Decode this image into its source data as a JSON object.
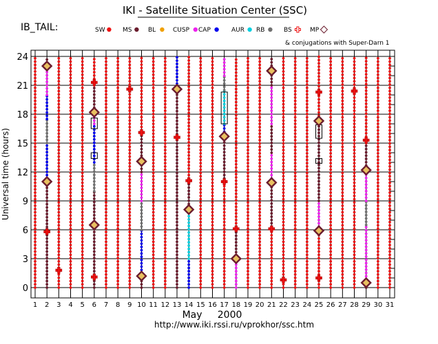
{
  "chart_data": {
    "type": "scatter",
    "title": "IKI - Satellite Situation Center (SSC)",
    "subtitle": "IB_TAIL:",
    "ylabel": "Universal time (hours)",
    "xlabel": "May     2000",
    "url": "http://www.iki.rssi.ru/vprokhor/ssc.htm",
    "conjugation_note": "& conjugations with Super-Darn 1",
    "xlim": [
      1,
      31
    ],
    "ylim": [
      0,
      24
    ],
    "y_ticks": [
      0,
      3,
      6,
      9,
      12,
      15,
      18,
      21,
      24
    ],
    "x_ticks": [
      "1",
      "2",
      "3",
      "4",
      "5",
      "6",
      "7",
      "8",
      "9",
      "10",
      "11",
      "12",
      "13",
      "14",
      "15",
      "16",
      "17",
      "18",
      "19",
      "20",
      "21",
      "22",
      "23",
      "24",
      "25",
      "26",
      "27",
      "28",
      "29",
      "30",
      "31"
    ],
    "grid": true,
    "legend": [
      {
        "label": "SW",
        "key": "SW",
        "color": "#ee1111"
      },
      {
        "label": "MS",
        "key": "MS",
        "color": "#6b1d2e"
      },
      {
        "label": "BL",
        "key": "BL",
        "color": "#f0a000"
      },
      {
        "label": "CUSP",
        "key": "CUSP",
        "color": "#ee22ee"
      },
      {
        "label": "CAP",
        "key": "CAP",
        "color": "#0000ee"
      },
      {
        "label": "AUR",
        "key": "AUR",
        "color": "#00d0e0"
      },
      {
        "label": "RB",
        "key": "RB",
        "color": "#707070"
      },
      {
        "label": "BS",
        "key": "BS",
        "color": "#ee1111"
      },
      {
        "label": "MP",
        "key": "MP",
        "color": "#6b1d2e"
      }
    ],
    "region_colors": {
      "SW": "#ee1111",
      "MS": "#6b1d2e",
      "BL": "#f0a000",
      "CUSP": "#ee22ee",
      "CAP": "#0000ee",
      "AUR": "#00d0e0",
      "RB": "#707070"
    },
    "columns": [
      {
        "day": 1,
        "segments": [
          {
            "from": 0,
            "to": 24,
            "region": "SW"
          }
        ]
      },
      {
        "day": 2,
        "segments": [
          {
            "from": 0,
            "to": 5.6,
            "region": "MS"
          },
          {
            "from": 5.6,
            "to": 11,
            "region": "MS"
          },
          {
            "from": 11,
            "to": 15,
            "region": "CAP"
          },
          {
            "from": 15,
            "to": 17.5,
            "region": "RB"
          },
          {
            "from": 17.5,
            "to": 20,
            "region": "CAP"
          },
          {
            "from": 20,
            "to": 23,
            "region": "CUSP"
          },
          {
            "from": 23,
            "to": 24,
            "region": "MS"
          }
        ]
      },
      {
        "day": 3,
        "segments": [
          {
            "from": 0,
            "to": 24,
            "region": "SW"
          }
        ]
      },
      {
        "day": 4,
        "segments": [
          {
            "from": 0,
            "to": 24,
            "region": "SW"
          }
        ]
      },
      {
        "day": 5,
        "segments": [
          {
            "from": 0,
            "to": 24,
            "region": "SW"
          }
        ]
      },
      {
        "day": 6,
        "segments": [
          {
            "from": 0,
            "to": 6.5,
            "region": "MS"
          },
          {
            "from": 6.5,
            "to": 10,
            "region": "MS"
          },
          {
            "from": 10,
            "to": 13,
            "region": "RB"
          },
          {
            "from": 13,
            "to": 17,
            "region": "CAP"
          },
          {
            "from": 17,
            "to": 18,
            "region": "CUSP"
          },
          {
            "from": 18,
            "to": 21,
            "region": "MS"
          },
          {
            "from": 21,
            "to": 24,
            "region": "SW"
          }
        ]
      },
      {
        "day": 7,
        "segments": [
          {
            "from": 0,
            "to": 24,
            "region": "SW"
          }
        ]
      },
      {
        "day": 8,
        "segments": [
          {
            "from": 0,
            "to": 24,
            "region": "SW"
          }
        ]
      },
      {
        "day": 9,
        "segments": [
          {
            "from": 0,
            "to": 24,
            "region": "SW"
          }
        ]
      },
      {
        "day": 10,
        "segments": [
          {
            "from": 0,
            "to": 1.5,
            "region": "MS"
          },
          {
            "from": 1.5,
            "to": 6,
            "region": "CAP"
          },
          {
            "from": 6,
            "to": 9,
            "region": "RB"
          },
          {
            "from": 9,
            "to": 12,
            "region": "CUSP"
          },
          {
            "from": 12,
            "to": 16,
            "region": "MS"
          },
          {
            "from": 16,
            "to": 24,
            "region": "SW"
          }
        ]
      },
      {
        "day": 11,
        "segments": [
          {
            "from": 0,
            "to": 24,
            "region": "SW"
          }
        ]
      },
      {
        "day": 12,
        "segments": [
          {
            "from": 0,
            "to": 24,
            "region": "SW"
          }
        ]
      },
      {
        "day": 13,
        "segments": [
          {
            "from": 0,
            "to": 15.6,
            "region": "MS"
          },
          {
            "from": 15.6,
            "to": 20.5,
            "region": "MS"
          },
          {
            "from": 20.5,
            "to": 24,
            "region": "CAP"
          }
        ]
      },
      {
        "day": 14,
        "segments": [
          {
            "from": 0,
            "to": 3,
            "region": "CAP"
          },
          {
            "from": 3,
            "to": 8,
            "region": "AUR"
          },
          {
            "from": 8,
            "to": 11,
            "region": "MS"
          },
          {
            "from": 11,
            "to": 24,
            "region": "SW"
          }
        ]
      },
      {
        "day": 15,
        "segments": [
          {
            "from": 0,
            "to": 24,
            "region": "SW"
          }
        ]
      },
      {
        "day": 16,
        "segments": [
          {
            "from": 0,
            "to": 24,
            "region": "SW"
          }
        ]
      },
      {
        "day": 17,
        "segments": [
          {
            "from": 0,
            "to": 11,
            "region": "SW"
          },
          {
            "from": 11,
            "to": 15.5,
            "region": "MS"
          },
          {
            "from": 15.5,
            "to": 17,
            "region": "CAP"
          },
          {
            "from": 17,
            "to": 20.5,
            "region": "AUR"
          },
          {
            "from": 20.5,
            "to": 22,
            "region": "RB"
          },
          {
            "from": 22,
            "to": 24,
            "region": "CUSP"
          }
        ]
      },
      {
        "day": 18,
        "segments": [
          {
            "from": 0,
            "to": 3,
            "region": "CUSP"
          },
          {
            "from": 3,
            "to": 6,
            "region": "MS"
          },
          {
            "from": 6,
            "to": 24,
            "region": "SW"
          }
        ]
      },
      {
        "day": 19,
        "segments": [
          {
            "from": 0,
            "to": 24,
            "region": "SW"
          }
        ]
      },
      {
        "day": 20,
        "segments": [
          {
            "from": 0,
            "to": 24,
            "region": "SW"
          }
        ]
      },
      {
        "day": 21,
        "segments": [
          {
            "from": 0,
            "to": 6,
            "region": "SW"
          },
          {
            "from": 6,
            "to": 11,
            "region": "MS"
          },
          {
            "from": 11,
            "to": 14,
            "region": "CUSP"
          },
          {
            "from": 14,
            "to": 17,
            "region": "MS"
          },
          {
            "from": 17,
            "to": 21,
            "region": "CUSP"
          },
          {
            "from": 21,
            "to": 24,
            "region": "MS"
          }
        ]
      },
      {
        "day": 22,
        "segments": [
          {
            "from": 0,
            "to": 24,
            "region": "SW"
          }
        ]
      },
      {
        "day": 23,
        "segments": [
          {
            "from": 0,
            "to": 24,
            "region": "SW"
          }
        ]
      },
      {
        "day": 24,
        "segments": [
          {
            "from": 0,
            "to": 24,
            "region": "SW"
          }
        ]
      },
      {
        "day": 25,
        "segments": [
          {
            "from": 0,
            "to": 6,
            "region": "SW"
          },
          {
            "from": 6,
            "to": 9,
            "region": "CUSP"
          },
          {
            "from": 9,
            "to": 13,
            "region": "MS"
          },
          {
            "from": 13,
            "to": 17.5,
            "region": "MS"
          },
          {
            "from": 17.5,
            "to": 24,
            "region": "SW"
          }
        ]
      },
      {
        "day": 26,
        "segments": [
          {
            "from": 0,
            "to": 24,
            "region": "SW"
          }
        ]
      },
      {
        "day": 27,
        "segments": [
          {
            "from": 0,
            "to": 24,
            "region": "SW"
          }
        ]
      },
      {
        "day": 28,
        "segments": [
          {
            "from": 0,
            "to": 24,
            "region": "SW"
          }
        ]
      },
      {
        "day": 29,
        "segments": [
          {
            "from": 0,
            "to": 0.5,
            "region": "MS"
          },
          {
            "from": 0.5,
            "to": 6.5,
            "region": "CUSP"
          },
          {
            "from": 6.5,
            "to": 9,
            "region": "RB"
          },
          {
            "from": 9,
            "to": 12,
            "region": "CUSP"
          },
          {
            "from": 12,
            "to": 15,
            "region": "MS"
          },
          {
            "from": 15,
            "to": 24,
            "region": "SW"
          }
        ]
      },
      {
        "day": 30,
        "segments": [
          {
            "from": 0,
            "to": 24,
            "region": "SW"
          }
        ]
      },
      {
        "day": 31,
        "segments": [
          {
            "from": 0,
            "to": 24,
            "region": "SW"
          }
        ]
      }
    ],
    "bow_shock_crossings": [
      {
        "day": 2,
        "ut": 5.8
      },
      {
        "day": 3,
        "ut": 1.8
      },
      {
        "day": 6,
        "ut": 21.3
      },
      {
        "day": 6,
        "ut": 1.1
      },
      {
        "day": 9,
        "ut": 20.6
      },
      {
        "day": 10,
        "ut": 16.1
      },
      {
        "day": 13,
        "ut": 15.6
      },
      {
        "day": 14,
        "ut": 11.1
      },
      {
        "day": 17,
        "ut": 11.0
      },
      {
        "day": 18,
        "ut": 6.1
      },
      {
        "day": 21,
        "ut": 6.1
      },
      {
        "day": 22,
        "ut": 0.8
      },
      {
        "day": 25,
        "ut": 20.3
      },
      {
        "day": 25,
        "ut": 1.0
      },
      {
        "day": 28,
        "ut": 20.4
      },
      {
        "day": 29,
        "ut": 15.3
      }
    ],
    "magnetopause_crossings": [
      {
        "day": 2,
        "ut": 23.0
      },
      {
        "day": 2,
        "ut": 11.0
      },
      {
        "day": 6,
        "ut": 18.2
      },
      {
        "day": 6,
        "ut": 6.5
      },
      {
        "day": 10,
        "ut": 13.1
      },
      {
        "day": 10,
        "ut": 1.2
      },
      {
        "day": 13,
        "ut": 20.6
      },
      {
        "day": 14,
        "ut": 8.1
      },
      {
        "day": 17,
        "ut": 15.7
      },
      {
        "day": 18,
        "ut": 3.0
      },
      {
        "day": 21,
        "ut": 22.5
      },
      {
        "day": 21,
        "ut": 10.9
      },
      {
        "day": 25,
        "ut": 17.3
      },
      {
        "day": 25,
        "ut": 5.9
      },
      {
        "day": 29,
        "ut": 12.2
      },
      {
        "day": 29,
        "ut": 0.5
      }
    ],
    "super_darn_conjugations": [
      {
        "day": 6,
        "from": 16.5,
        "to": 17.6
      },
      {
        "day": 6,
        "from": 13.4,
        "to": 14.0
      },
      {
        "day": 17,
        "from": 17.0,
        "to": 20.3
      },
      {
        "day": 25,
        "from": 15.5,
        "to": 16.9
      },
      {
        "day": 25,
        "from": 12.9,
        "to": 13.4
      }
    ]
  }
}
